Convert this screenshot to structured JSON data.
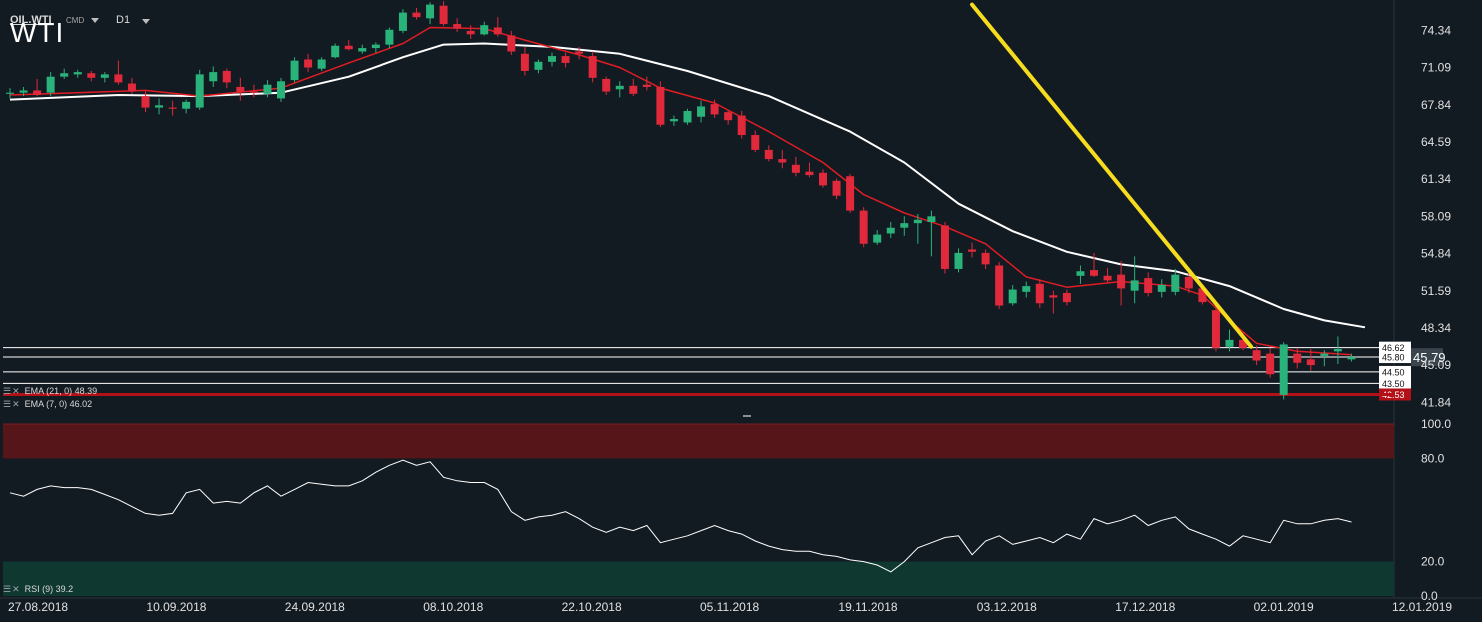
{
  "header": {
    "symbol": "OIL.WTI",
    "source": "CMD",
    "timeframe": "D1",
    "title": "WTI"
  },
  "indicators": {
    "ema21": {
      "label": "EMA (21, 0) 48.39",
      "color": "#ffffff"
    },
    "ema7": {
      "label": "EMA (7, 0) 46.02",
      "color": "#e01c24"
    },
    "rsi": {
      "label": "RSI (9) 39.2",
      "color": "#ffffff"
    }
  },
  "colors": {
    "background": "#131b22",
    "bull": "#2ab27b",
    "bear": "#e0293b",
    "trendline": "#f5dc1e",
    "rsi_overbought": "#5a1518",
    "rsi_oversold": "#0f3a32",
    "support": "#b31118"
  },
  "chart_data": {
    "type": "candlestick",
    "title": "WTI",
    "price_ticks": [
      "74.34",
      "71.09",
      "67.84",
      "64.59",
      "61.34",
      "58.09",
      "54.84",
      "51.59",
      "48.34",
      "45.09",
      "41.84"
    ],
    "price_range": [
      40.3,
      77.0
    ],
    "x_tick_labels": [
      "27.08.2018",
      "10.09.2018",
      "24.09.2018",
      "08.10.2018",
      "22.10.2018",
      "05.11.2018",
      "19.11.2018",
      "03.12.2018",
      "17.12.2018",
      "02.01.2019",
      "12.01.2019"
    ],
    "current_price": "45.79",
    "horizontal_levels": [
      {
        "value": 46.62,
        "label": "46.62"
      },
      {
        "value": 45.8,
        "label": "45.80"
      },
      {
        "value": 44.5,
        "label": "44.50"
      },
      {
        "value": 43.5,
        "label": "43.50"
      },
      {
        "value": 42.53,
        "label": "42.53",
        "support": true
      }
    ],
    "trendline": [
      [
        71.0,
        76.6
      ],
      [
        91.6,
        46.7
      ]
    ],
    "candles": [
      [
        0,
        68.8,
        69.3,
        68.4,
        68.9
      ],
      [
        1,
        68.9,
        69.4,
        68.6,
        69.1
      ],
      [
        2,
        69.1,
        70.1,
        68.6,
        68.7
      ],
      [
        3,
        68.9,
        70.7,
        68.6,
        70.3
      ],
      [
        4,
        70.3,
        71.0,
        70.1,
        70.6
      ],
      [
        5,
        70.5,
        70.9,
        70.2,
        70.7
      ],
      [
        6,
        70.6,
        70.8,
        69.9,
        70.2
      ],
      [
        7,
        70.2,
        70.7,
        69.8,
        70.5
      ],
      [
        8,
        70.5,
        71.7,
        69.6,
        69.8
      ],
      [
        9,
        69.7,
        70.2,
        68.8,
        69.0
      ],
      [
        10,
        68.6,
        69.0,
        67.2,
        67.6
      ],
      [
        11,
        67.6,
        68.4,
        67.0,
        67.8
      ],
      [
        12,
        67.6,
        68.2,
        66.9,
        67.5
      ],
      [
        13,
        67.5,
        68.3,
        67.1,
        68.1
      ],
      [
        14,
        67.6,
        70.9,
        67.4,
        70.5
      ],
      [
        15,
        69.9,
        71.2,
        69.4,
        70.7
      ],
      [
        16,
        70.8,
        71.0,
        69.3,
        69.8
      ],
      [
        17,
        69.4,
        70.2,
        68.2,
        69.0
      ],
      [
        18,
        69.0,
        69.6,
        68.5,
        68.9
      ],
      [
        19,
        68.8,
        70.0,
        68.5,
        69.6
      ],
      [
        20,
        68.4,
        70.2,
        68.1,
        69.9
      ],
      [
        21,
        70.0,
        72.0,
        69.8,
        71.7
      ],
      [
        22,
        71.8,
        72.3,
        70.7,
        71.1
      ],
      [
        23,
        71.0,
        72.0,
        70.8,
        71.8
      ],
      [
        24,
        72.0,
        73.2,
        71.9,
        73.0
      ],
      [
        25,
        73.0,
        73.5,
        72.6,
        72.7
      ],
      [
        26,
        72.5,
        73.1,
        72.3,
        72.8
      ],
      [
        27,
        72.8,
        73.3,
        72.4,
        73.1
      ],
      [
        28,
        73.1,
        74.6,
        72.8,
        74.4
      ],
      [
        29,
        74.3,
        76.2,
        74.1,
        75.9
      ],
      [
        30,
        75.9,
        76.3,
        75.3,
        75.5
      ],
      [
        31,
        75.4,
        76.8,
        74.9,
        76.6
      ],
      [
        32,
        76.5,
        76.9,
        74.7,
        74.9
      ],
      [
        33,
        74.9,
        75.4,
        74.2,
        74.5
      ],
      [
        34,
        74.3,
        74.8,
        73.6,
        74.0
      ],
      [
        35,
        74.0,
        75.1,
        73.9,
        74.8
      ],
      [
        36,
        74.6,
        75.5,
        73.8,
        74.0
      ],
      [
        37,
        73.9,
        74.3,
        72.2,
        72.5
      ],
      [
        38,
        72.3,
        72.9,
        70.4,
        70.8
      ],
      [
        39,
        70.9,
        71.8,
        70.6,
        71.6
      ],
      [
        40,
        71.6,
        72.4,
        71.2,
        72.1
      ],
      [
        41,
        72.1,
        72.4,
        71.1,
        71.5
      ],
      [
        42,
        72.5,
        72.9,
        71.8,
        72.3
      ],
      [
        43,
        72.1,
        72.5,
        69.8,
        70.2
      ],
      [
        44,
        70.1,
        70.3,
        68.7,
        69.0
      ],
      [
        45,
        69.2,
        69.9,
        68.5,
        69.5
      ],
      [
        46,
        69.5,
        70.1,
        68.6,
        68.8
      ],
      [
        47,
        69.6,
        70.3,
        69.1,
        69.4
      ],
      [
        48,
        69.4,
        69.9,
        65.9,
        66.1
      ],
      [
        49,
        66.4,
        66.9,
        66.0,
        66.6
      ],
      [
        50,
        66.3,
        67.5,
        66.1,
        67.3
      ],
      [
        51,
        66.8,
        68.2,
        66.3,
        67.7
      ],
      [
        52,
        67.9,
        68.3,
        66.7,
        67.0
      ],
      [
        53,
        67.2,
        67.4,
        66.1,
        66.5
      ],
      [
        54,
        66.9,
        67.3,
        64.9,
        65.2
      ],
      [
        55,
        65.2,
        65.6,
        63.7,
        63.9
      ],
      [
        56,
        63.9,
        64.3,
        62.9,
        63.1
      ],
      [
        57,
        63.1,
        63.9,
        62.3,
        62.8
      ],
      [
        58,
        62.6,
        63.3,
        61.6,
        61.9
      ],
      [
        59,
        62.0,
        62.8,
        61.5,
        61.7
      ],
      [
        60,
        61.9,
        62.2,
        60.6,
        60.8
      ],
      [
        61,
        61.2,
        61.4,
        59.6,
        59.9
      ],
      [
        62,
        61.6,
        61.8,
        58.4,
        58.6
      ],
      [
        63,
        58.6,
        58.9,
        55.4,
        55.7
      ],
      [
        64,
        55.8,
        56.9,
        55.6,
        56.5
      ],
      [
        65,
        56.6,
        57.6,
        56.2,
        57.1
      ],
      [
        66,
        57.1,
        58.1,
        56.4,
        57.5
      ],
      [
        67,
        57.5,
        58.3,
        55.7,
        57.8
      ],
      [
        68,
        57.6,
        58.6,
        54.6,
        58.1
      ],
      [
        69,
        57.3,
        57.6,
        53.1,
        53.5
      ],
      [
        70,
        53.5,
        55.3,
        53.2,
        54.9
      ],
      [
        71,
        55.2,
        55.8,
        54.5,
        55.0
      ],
      [
        72,
        54.9,
        55.2,
        53.5,
        53.9
      ],
      [
        73,
        53.8,
        54.1,
        50.0,
        50.3
      ],
      [
        74,
        50.5,
        52.1,
        50.3,
        51.7
      ],
      [
        75,
        51.5,
        52.4,
        51.0,
        52.0
      ],
      [
        76,
        52.2,
        52.6,
        50.1,
        50.5
      ],
      [
        77,
        51.2,
        51.6,
        49.6,
        51.0
      ],
      [
        78,
        51.4,
        51.7,
        50.3,
        50.6
      ],
      [
        79,
        52.9,
        53.8,
        52.2,
        53.3
      ],
      [
        80,
        53.4,
        54.9,
        52.8,
        52.9
      ],
      [
        81,
        52.9,
        53.6,
        52.3,
        52.5
      ],
      [
        82,
        53.0,
        54.2,
        50.3,
        51.8
      ],
      [
        83,
        51.6,
        54.6,
        50.5,
        52.5
      ],
      [
        84,
        52.7,
        53.2,
        51.1,
        51.4
      ],
      [
        85,
        51.5,
        52.6,
        51.0,
        52.1
      ],
      [
        86,
        51.5,
        53.5,
        51.2,
        53.0
      ],
      [
        87,
        52.8,
        53.6,
        51.4,
        51.8
      ],
      [
        88,
        51.8,
        52.0,
        50.4,
        50.6
      ],
      [
        89,
        49.9,
        50.2,
        46.3,
        46.6
      ],
      [
        90,
        46.7,
        48.2,
        46.3,
        47.3
      ],
      [
        91,
        47.3,
        48.0,
        46.4,
        46.6
      ],
      [
        92,
        46.4,
        46.8,
        45.1,
        45.5
      ],
      [
        93,
        46.1,
        46.6,
        44.0,
        44.3
      ],
      [
        94,
        42.5,
        47.1,
        42.1,
        46.9
      ],
      [
        95,
        46.1,
        46.6,
        44.8,
        45.3
      ],
      [
        96,
        45.6,
        46.5,
        44.6,
        45.1
      ],
      [
        97,
        45.9,
        46.4,
        45.0,
        46.1
      ],
      [
        98,
        46.3,
        47.6,
        45.2,
        46.5
      ],
      [
        99,
        45.6,
        46.1,
        45.4,
        45.8
      ]
    ],
    "ema7": [
      [
        0,
        68.7
      ],
      [
        10,
        69.1
      ],
      [
        14,
        68.6
      ],
      [
        20,
        69.3
      ],
      [
        25,
        71.5
      ],
      [
        29,
        73.2
      ],
      [
        31,
        74.6
      ],
      [
        35,
        74.5
      ],
      [
        38,
        73.5
      ],
      [
        42,
        72.2
      ],
      [
        45,
        71.1
      ],
      [
        48,
        69.3
      ],
      [
        52,
        68.0
      ],
      [
        56,
        65.5
      ],
      [
        60,
        62.8
      ],
      [
        63,
        60.0
      ],
      [
        66,
        58.4
      ],
      [
        69,
        57.2
      ],
      [
        72,
        55.7
      ],
      [
        75,
        52.8
      ],
      [
        78,
        51.9
      ],
      [
        82,
        52.4
      ],
      [
        86,
        52.0
      ],
      [
        88,
        51.2
      ],
      [
        90,
        49.0
      ],
      [
        92,
        47.0
      ],
      [
        95,
        46.3
      ],
      [
        99,
        46.0
      ]
    ],
    "ema21": [
      [
        0,
        68.3
      ],
      [
        8,
        68.7
      ],
      [
        14,
        68.6
      ],
      [
        20,
        68.9
      ],
      [
        25,
        70.3
      ],
      [
        29,
        72.0
      ],
      [
        32,
        73.1
      ],
      [
        35,
        73.2
      ],
      [
        40,
        72.9
      ],
      [
        45,
        72.3
      ],
      [
        50,
        70.8
      ],
      [
        56,
        68.6
      ],
      [
        62,
        65.5
      ],
      [
        66,
        62.8
      ],
      [
        70,
        59.2
      ],
      [
        74,
        56.8
      ],
      [
        78,
        55.0
      ],
      [
        82,
        53.9
      ],
      [
        86,
        53.3
      ],
      [
        90,
        52.0
      ],
      [
        94,
        50.0
      ],
      [
        97,
        49.0
      ],
      [
        100,
        48.4
      ]
    ],
    "rsi": {
      "ticks": [
        "100.0",
        "80.0",
        "20.0",
        "0.0"
      ],
      "range": [
        0,
        100
      ],
      "overbought": 80,
      "oversold": 20,
      "values": [
        [
          0,
          60
        ],
        [
          1,
          58
        ],
        [
          2,
          62
        ],
        [
          3,
          64
        ],
        [
          4,
          63
        ],
        [
          5,
          63
        ],
        [
          6,
          62
        ],
        [
          7,
          59
        ],
        [
          8,
          56
        ],
        [
          9,
          52
        ],
        [
          10,
          48
        ],
        [
          11,
          47
        ],
        [
          12,
          48
        ],
        [
          13,
          60
        ],
        [
          14,
          62
        ],
        [
          15,
          54
        ],
        [
          16,
          55
        ],
        [
          17,
          54
        ],
        [
          18,
          60
        ],
        [
          19,
          64
        ],
        [
          20,
          58
        ],
        [
          21,
          62
        ],
        [
          22,
          66
        ],
        [
          23,
          65
        ],
        [
          24,
          64
        ],
        [
          25,
          64
        ],
        [
          26,
          67
        ],
        [
          27,
          72
        ],
        [
          28,
          76
        ],
        [
          29,
          79
        ],
        [
          30,
          76
        ],
        [
          31,
          78
        ],
        [
          32,
          69
        ],
        [
          33,
          67
        ],
        [
          34,
          66
        ],
        [
          35,
          66
        ],
        [
          36,
          62
        ],
        [
          37,
          49
        ],
        [
          38,
          44
        ],
        [
          39,
          46
        ],
        [
          40,
          47
        ],
        [
          41,
          49
        ],
        [
          42,
          45
        ],
        [
          43,
          40
        ],
        [
          44,
          37
        ],
        [
          45,
          40
        ],
        [
          46,
          38
        ],
        [
          47,
          41
        ],
        [
          48,
          31
        ],
        [
          49,
          33
        ],
        [
          50,
          35
        ],
        [
          51,
          38
        ],
        [
          52,
          41
        ],
        [
          53,
          38
        ],
        [
          54,
          36
        ],
        [
          55,
          32
        ],
        [
          56,
          29
        ],
        [
          57,
          27
        ],
        [
          58,
          26
        ],
        [
          59,
          26
        ],
        [
          60,
          24
        ],
        [
          61,
          23
        ],
        [
          62,
          21
        ],
        [
          63,
          20
        ],
        [
          64,
          18
        ],
        [
          65,
          14
        ],
        [
          66,
          20
        ],
        [
          67,
          28
        ],
        [
          68,
          31
        ],
        [
          69,
          34
        ],
        [
          70,
          35
        ],
        [
          71,
          24
        ],
        [
          72,
          32
        ],
        [
          73,
          35
        ],
        [
          74,
          30
        ],
        [
          75,
          32
        ],
        [
          76,
          34
        ],
        [
          77,
          31
        ],
        [
          78,
          36
        ],
        [
          79,
          33
        ],
        [
          80,
          45
        ],
        [
          81,
          42
        ],
        [
          82,
          44
        ],
        [
          83,
          47
        ],
        [
          84,
          41
        ],
        [
          85,
          44
        ],
        [
          86,
          46
        ],
        [
          87,
          39
        ],
        [
          88,
          36
        ],
        [
          89,
          33
        ],
        [
          90,
          29
        ],
        [
          91,
          35
        ],
        [
          92,
          33
        ],
        [
          93,
          31
        ],
        [
          94,
          44
        ],
        [
          95,
          42
        ],
        [
          96,
          42
        ],
        [
          97,
          44
        ],
        [
          98,
          45
        ],
        [
          99,
          43
        ]
      ]
    }
  }
}
